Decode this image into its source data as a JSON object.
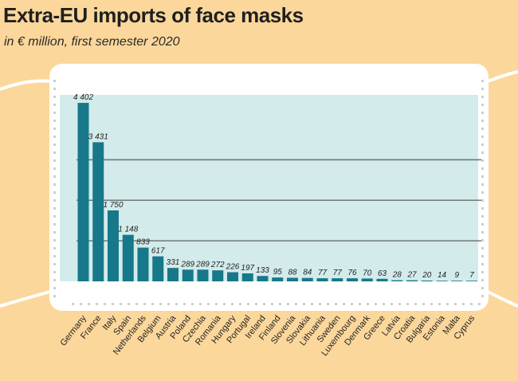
{
  "chart_data": {
    "type": "bar",
    "title": "Extra-EU imports of face masks",
    "subtitle": "in € million, first semester 2020",
    "xlabel": "",
    "ylabel": "",
    "ylim": [
      0,
      4600
    ],
    "grid": true,
    "categories": [
      "Germany",
      "France",
      "Italy",
      "Spain",
      "Netherlands",
      "Belgium",
      "Austria",
      "Poland",
      "Czechia",
      "Romania",
      "Hungary",
      "Portugal",
      "Ireland",
      "Finland",
      "Slovenia",
      "Slovakia",
      "Lithuania",
      "Sweden",
      "Luxembourg",
      "Denmark",
      "Greece",
      "Latvia",
      "Croatia",
      "Bulgaria",
      "Estonia",
      "Malta",
      "Cyprus"
    ],
    "values": [
      4402,
      3431,
      1750,
      1148,
      833,
      617,
      331,
      289,
      289,
      272,
      226,
      197,
      133,
      95,
      88,
      84,
      77,
      77,
      76,
      70,
      63,
      28,
      27,
      20,
      14,
      9,
      7
    ],
    "value_labels": [
      "4 402",
      "3 431",
      "1 750",
      "1 148",
      "833",
      "617",
      "331",
      "289",
      "289",
      "272",
      "226",
      "197",
      "133",
      "95",
      "88",
      "84",
      "77",
      "77",
      "76",
      "70",
      "63",
      "28",
      "27",
      "20",
      "14",
      "9",
      "7"
    ]
  },
  "colors": {
    "background": "#fcd79b",
    "mask": "#ffffff",
    "plot_area": "#d3ebeb",
    "bar": "#17788a",
    "gridline": "#707878",
    "dots": "#c9cfcf"
  }
}
